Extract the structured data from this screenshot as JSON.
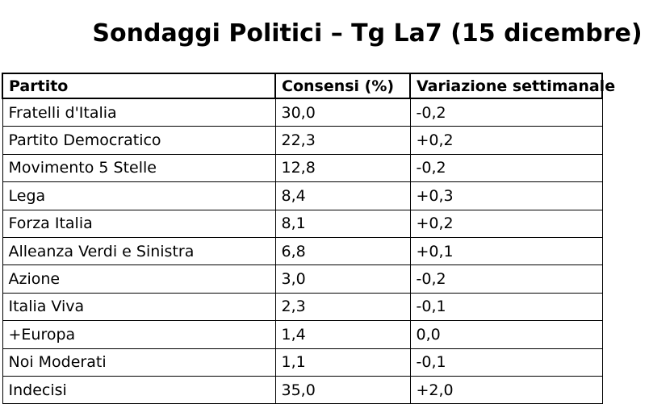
{
  "title": "Sondaggi Politici – Tg La7 (15 dicembre)",
  "colors": {
    "background": "#ffffff",
    "text": "#000000",
    "border": "#000000"
  },
  "table": {
    "columns": [
      "Partito",
      "Consensi (%)",
      "Variazione settimanale"
    ],
    "rows": [
      {
        "party": "Fratelli d'Italia",
        "consensus": "30,0",
        "change": "-0,2"
      },
      {
        "party": "Partito Democratico",
        "consensus": "22,3",
        "change": "+0,2"
      },
      {
        "party": "Movimento 5 Stelle",
        "consensus": "12,8",
        "change": "-0,2"
      },
      {
        "party": "Lega",
        "consensus": "8,4",
        "change": "+0,3"
      },
      {
        "party": "Forza Italia",
        "consensus": "8,1",
        "change": "+0,2"
      },
      {
        "party": "Alleanza Verdi e Sinistra",
        "consensus": "6,8",
        "change": "+0,1"
      },
      {
        "party": "Azione",
        "consensus": "3,0",
        "change": "-0,2"
      },
      {
        "party": "Italia Viva",
        "consensus": "2,3",
        "change": "-0,1"
      },
      {
        "party": "+Europa",
        "consensus": "1,4",
        "change": "0,0"
      },
      {
        "party": "Noi Moderati",
        "consensus": "1,1",
        "change": "-0,1"
      },
      {
        "party": "Indecisi",
        "consensus": "35,0",
        "change": "+2,0"
      }
    ]
  },
  "chart_data": {
    "type": "table",
    "title": "Sondaggi Politici – Tg La7 (15 dicembre)",
    "columns": [
      "Partito",
      "Consensi (%)",
      "Variazione settimanale"
    ],
    "rows": [
      [
        "Fratelli d'Italia",
        "30,0",
        "-0,2"
      ],
      [
        "Partito Democratico",
        "22,3",
        "+0,2"
      ],
      [
        "Movimento 5 Stelle",
        "12,8",
        "-0,2"
      ],
      [
        "Lega",
        "8,4",
        "+0,3"
      ],
      [
        "Forza Italia",
        "8,1",
        "+0,2"
      ],
      [
        "Alleanza Verdi e Sinistra",
        "6,8",
        "+0,1"
      ],
      [
        "Azione",
        "3,0",
        "-0,2"
      ],
      [
        "Italia Viva",
        "2,3",
        "-0,1"
      ],
      [
        "+Europa",
        "1,4",
        "0,0"
      ],
      [
        "Noi Moderati",
        "1,1",
        "-0,1"
      ],
      [
        "Indecisi",
        "35,0",
        "+2,0"
      ]
    ],
    "consensi_numeric": [
      30.0,
      22.3,
      12.8,
      8.4,
      8.1,
      6.8,
      3.0,
      2.3,
      1.4,
      1.1,
      35.0
    ],
    "variazione_numeric": [
      -0.2,
      0.2,
      -0.2,
      0.3,
      0.2,
      0.1,
      -0.2,
      -0.1,
      0.0,
      -0.1,
      2.0
    ],
    "decimal_separator": ","
  }
}
